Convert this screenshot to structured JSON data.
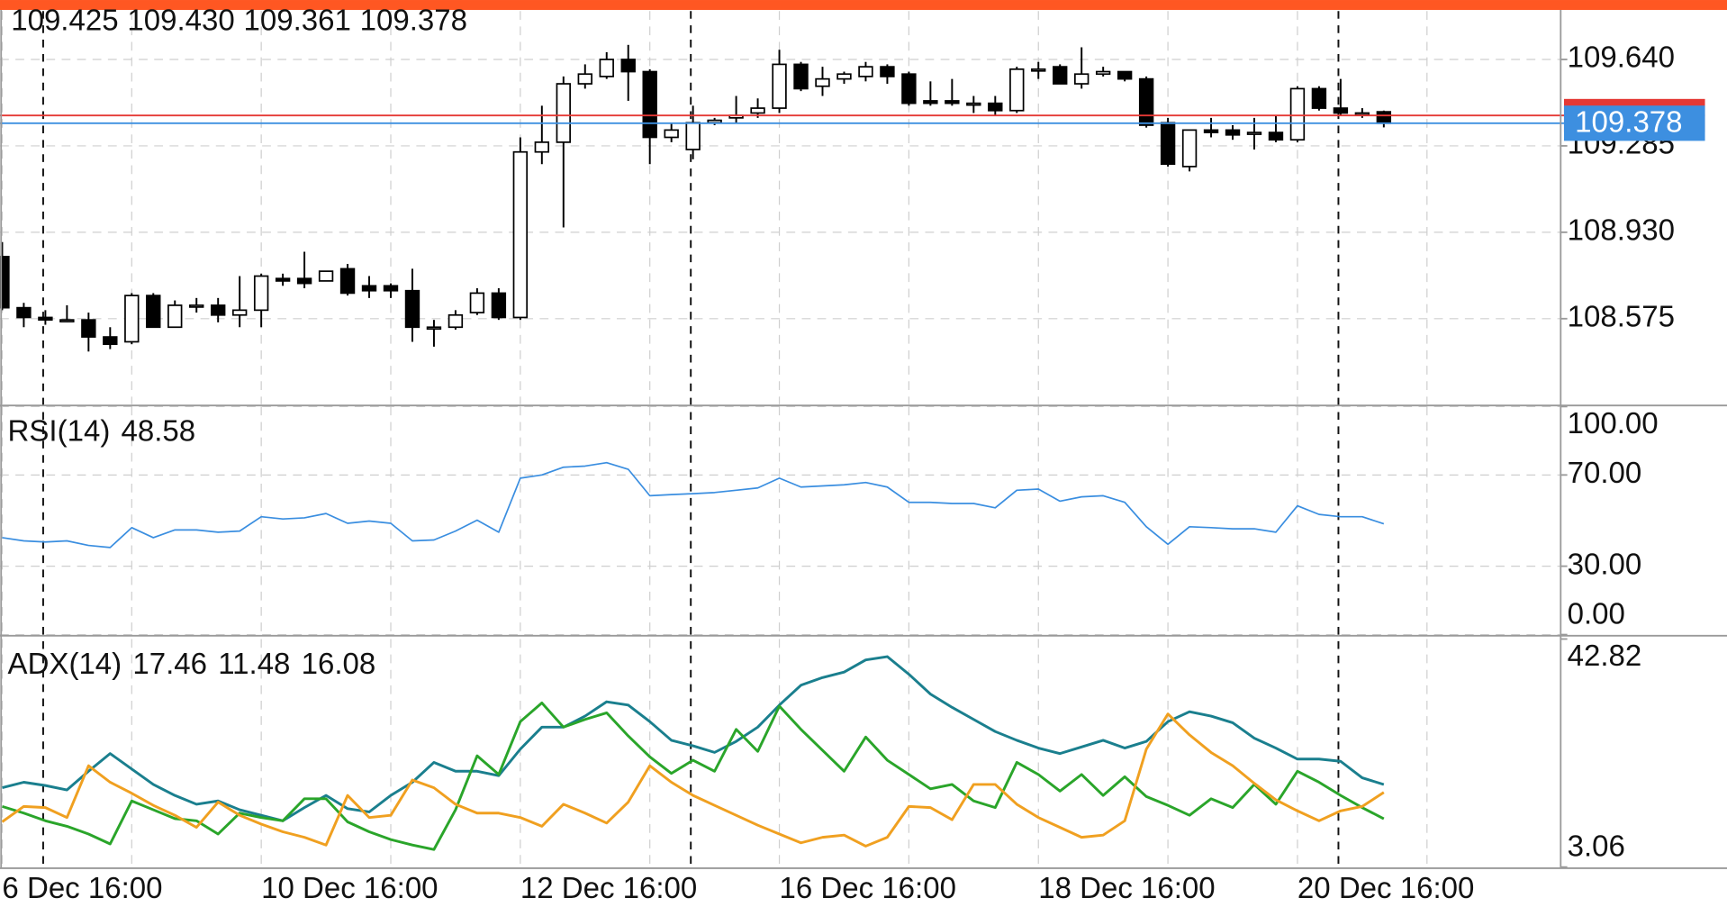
{
  "chart_data": [
    {
      "type": "candlestick",
      "legend_labels": [
        "109.425",
        "109.430",
        "109.361",
        "109.378"
      ],
      "categories": [
        "6 Dec 16:00",
        null,
        null,
        null,
        null,
        null,
        null,
        null,
        null,
        null,
        null,
        null,
        "10 Dec 16:00",
        null,
        null,
        null,
        null,
        null,
        null,
        null,
        null,
        null,
        null,
        null,
        "12 Dec 16:00",
        null,
        null,
        null,
        null,
        null,
        null,
        null,
        null,
        null,
        null,
        null,
        "16 Dec 16:00",
        null,
        null,
        null,
        null,
        null,
        null,
        null,
        null,
        null,
        null,
        null,
        "18 Dec 16:00",
        null,
        null,
        null,
        null,
        null,
        null,
        null,
        null,
        null,
        null,
        null,
        "20 Dec 16:00",
        null,
        null,
        null,
        null
      ],
      "open": [
        108.83,
        108.62,
        108.58,
        108.57,
        108.57,
        108.5,
        108.48,
        108.67,
        108.54,
        108.63,
        108.63,
        108.59,
        108.61,
        108.74,
        108.74,
        108.73,
        108.78,
        108.71,
        108.71,
        108.69,
        108.54,
        108.54,
        108.6,
        108.68,
        108.58,
        109.26,
        109.3,
        109.54,
        109.57,
        109.64,
        109.59,
        109.32,
        109.27,
        109.38,
        109.4,
        109.42,
        109.44,
        109.62,
        109.53,
        109.56,
        109.57,
        109.61,
        109.58,
        109.47,
        109.47,
        109.46,
        109.46,
        109.43,
        109.6,
        109.61,
        109.54,
        109.58,
        109.59,
        109.56,
        109.38,
        109.2,
        109.35,
        109.35,
        109.34,
        109.34,
        109.31,
        109.52,
        109.44,
        109.42,
        109.425
      ],
      "high": [
        108.89,
        108.64,
        108.61,
        108.63,
        108.6,
        108.54,
        108.68,
        108.68,
        108.65,
        108.66,
        108.66,
        108.75,
        108.76,
        108.76,
        108.85,
        108.77,
        108.8,
        108.75,
        108.72,
        108.78,
        108.57,
        108.61,
        108.7,
        108.7,
        109.32,
        109.45,
        109.57,
        109.62,
        109.67,
        109.7,
        109.6,
        109.38,
        109.45,
        109.4,
        109.49,
        109.48,
        109.68,
        109.63,
        109.61,
        109.59,
        109.63,
        109.62,
        109.59,
        109.55,
        109.56,
        109.49,
        109.49,
        109.61,
        109.63,
        109.62,
        109.69,
        109.61,
        109.59,
        109.57,
        109.4,
        109.35,
        109.4,
        109.37,
        109.4,
        109.41,
        109.53,
        109.53,
        109.56,
        109.44,
        109.43
      ],
      "low": [
        108.61,
        108.54,
        108.55,
        108.56,
        108.44,
        108.45,
        108.47,
        108.54,
        108.54,
        108.6,
        108.56,
        108.54,
        108.54,
        108.71,
        108.7,
        108.73,
        108.67,
        108.66,
        108.66,
        108.48,
        108.46,
        108.53,
        108.59,
        108.57,
        108.57,
        109.21,
        108.95,
        109.52,
        109.56,
        109.47,
        109.21,
        109.3,
        109.23,
        109.37,
        109.38,
        109.4,
        109.42,
        109.51,
        109.49,
        109.54,
        109.55,
        109.54,
        109.45,
        109.45,
        109.45,
        109.42,
        109.41,
        109.42,
        109.56,
        109.54,
        109.52,
        109.57,
        109.55,
        109.36,
        109.2,
        109.18,
        109.32,
        109.31,
        109.27,
        109.3,
        109.3,
        109.43,
        109.41,
        109.4,
        109.361
      ],
      "close": [
        108.62,
        108.58,
        108.57,
        108.57,
        108.5,
        108.47,
        108.67,
        108.54,
        108.63,
        108.63,
        108.59,
        108.61,
        108.75,
        108.73,
        108.72,
        108.77,
        108.68,
        108.69,
        108.69,
        108.54,
        108.54,
        108.59,
        108.68,
        108.58,
        109.26,
        109.3,
        109.54,
        109.58,
        109.64,
        109.59,
        109.32,
        109.35,
        109.38,
        109.39,
        109.41,
        109.44,
        109.62,
        109.52,
        109.56,
        109.58,
        109.61,
        109.57,
        109.46,
        109.46,
        109.46,
        109.46,
        109.43,
        109.6,
        109.6,
        109.54,
        109.58,
        109.59,
        109.56,
        109.37,
        109.21,
        109.35,
        109.34,
        109.33,
        109.34,
        109.31,
        109.52,
        109.44,
        109.42,
        109.42,
        109.378
      ],
      "up_color": "#ffffff",
      "down_color": "#000000",
      "last_price_color": "#3d8fe0",
      "ask": 109.41,
      "ask_color": "#e53935",
      "session_breaks": [
        2,
        32,
        62
      ],
      "ylim": [
        108.223,
        109.839
      ],
      "yticks": [
        {
          "value": 109.64,
          "label": "109.640"
        },
        {
          "value": 109.285,
          "label": "109.285"
        },
        {
          "value": 108.93,
          "label": "108.930"
        },
        {
          "value": 108.575,
          "label": "108.575"
        }
      ],
      "grid": true
    },
    {
      "type": "line",
      "label": "RSI(14)",
      "series": [
        {
          "color": "#3a8ee0",
          "values": [
            42.5,
            41.1,
            40.6,
            41.1,
            39.1,
            38.2,
            46.9,
            42.5,
            45.9,
            45.9,
            44.9,
            45.4,
            51.7,
            50.7,
            51.2,
            53.1,
            48.8,
            49.8,
            48.8,
            41.1,
            41.5,
            45.4,
            50.2,
            44.9,
            68.6,
            70.0,
            73.4,
            73.9,
            75.4,
            72.5,
            60.9,
            61.4,
            61.8,
            62.3,
            63.3,
            64.3,
            68.6,
            64.7,
            65.2,
            65.7,
            66.7,
            64.7,
            58.0,
            58.0,
            57.5,
            57.5,
            55.6,
            63.3,
            63.8,
            58.5,
            60.4,
            60.9,
            58.0,
            47.3,
            39.6,
            47.3,
            46.9,
            46.4,
            46.4,
            44.9,
            56.5,
            52.7,
            51.7,
            51.7,
            48.58
          ]
        }
      ],
      "ylim": [
        0,
        100
      ],
      "yticks": [
        {
          "value": 100,
          "label": "100.00"
        },
        {
          "value": 70,
          "label": "70.00"
        },
        {
          "value": 30,
          "label": "30.00"
        },
        {
          "value": 0,
          "label": "0.00"
        }
      ],
      "grid": true
    },
    {
      "type": "line",
      "label": "ADX(14)",
      "series": [
        {
          "color": "#1a7f8e",
          "values": [
            16.89,
            17.85,
            17.28,
            16.51,
            19.77,
            22.85,
            20.16,
            17.47,
            15.55,
            14.01,
            14.59,
            13.05,
            12.09,
            11.13,
            13.43,
            15.55,
            13.24,
            12.67,
            15.55,
            17.85,
            21.31,
            19.77,
            19.77,
            19.0,
            23.62,
            27.46,
            27.46,
            29.38,
            31.88,
            31.3,
            28.42,
            25.16,
            24.2,
            23.05,
            24.97,
            27.46,
            31.3,
            34.76,
            36.1,
            37.06,
            39.17,
            39.75,
            36.68,
            33.22,
            30.91,
            28.8,
            26.69,
            25.16,
            23.81,
            22.85,
            24.0,
            25.16,
            23.81,
            24.97,
            28.42,
            30.15,
            29.38,
            28.22,
            25.53,
            23.81,
            21.89,
            21.89,
            21.5,
            18.62,
            17.46
          ]
        },
        {
          "color": "#2aa52a",
          "values": [
            13.63,
            12.47,
            11.13,
            10.17,
            8.82,
            7.09,
            14.59,
            13.05,
            11.51,
            11.13,
            8.82,
            12.47,
            11.7,
            11.13,
            14.97,
            14.97,
            10.94,
            9.21,
            7.86,
            6.9,
            6.13,
            13.05,
            22.46,
            19.2,
            28.42,
            31.68,
            27.46,
            28.8,
            29.95,
            25.92,
            22.27,
            19.39,
            21.69,
            19.77,
            27.07,
            23.23,
            31.11,
            27.07,
            23.42,
            19.77,
            25.73,
            21.69,
            19.2,
            16.7,
            17.47,
            14.59,
            13.43,
            21.31,
            19.2,
            16.31,
            19.2,
            15.55,
            18.81,
            15.35,
            13.82,
            12.09,
            14.97,
            13.43,
            17.47,
            14.01,
            19.77,
            17.85,
            15.55,
            13.43,
            11.48
          ]
        },
        {
          "color": "#f0a020",
          "values": [
            10.94,
            13.63,
            13.43,
            11.7,
            20.73,
            17.85,
            15.93,
            13.82,
            12.09,
            9.98,
            14.39,
            12.09,
            10.55,
            9.21,
            8.25,
            6.9,
            15.55,
            11.7,
            12.09,
            18.24,
            16.89,
            14.01,
            12.47,
            12.47,
            11.7,
            10.17,
            14.01,
            12.47,
            10.74,
            14.39,
            20.73,
            17.85,
            15.55,
            13.82,
            12.09,
            10.36,
            8.82,
            7.29,
            8.25,
            8.63,
            6.71,
            8.25,
            13.63,
            13.43,
            11.32,
            17.47,
            17.47,
            14.01,
            11.7,
            9.98,
            8.25,
            8.63,
            11.13,
            23.62,
            29.76,
            26.11,
            23.04,
            20.73,
            17.66,
            14.78,
            12.86,
            11.13,
            12.86,
            13.63,
            16.08
          ]
        }
      ],
      "ylim": [
        3.06,
        42.82
      ],
      "yticks": [
        42.82,
        3.06
      ],
      "grid": false
    }
  ]
}
